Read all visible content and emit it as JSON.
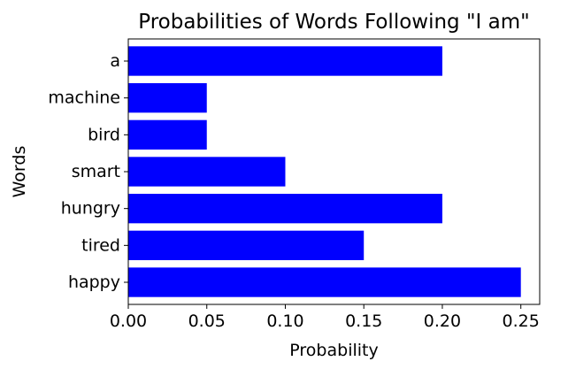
{
  "chart_data": {
    "type": "bar",
    "orientation": "horizontal",
    "title": "Probabilities of Words Following \"I am\"",
    "xlabel": "Probability",
    "ylabel": "Words",
    "categories": [
      "happy",
      "tired",
      "hungry",
      "smart",
      "bird",
      "machine",
      "a"
    ],
    "values": [
      0.25,
      0.15,
      0.2,
      0.1,
      0.05,
      0.05,
      0.2
    ],
    "xlim": [
      0,
      0.262
    ],
    "xticks": [
      0.0,
      0.05,
      0.1,
      0.15,
      0.2,
      0.25
    ],
    "xtick_labels": [
      "0.00",
      "0.05",
      "0.10",
      "0.15",
      "0.20",
      "0.25"
    ],
    "bar_color": "#0000ff",
    "grid": false,
    "legend": false
  }
}
